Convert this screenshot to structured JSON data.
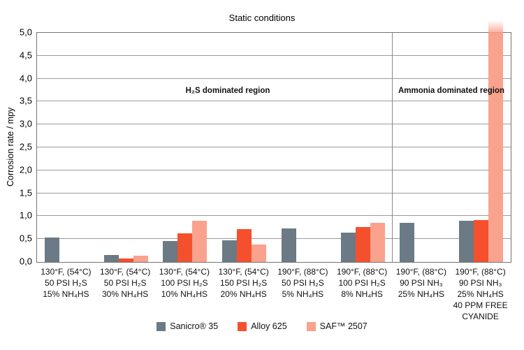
{
  "chart_data": {
    "type": "bar",
    "title": "Static conditions",
    "xlabel": "",
    "ylabel": "Corrosion rate / mpy",
    "ylim": [
      0,
      5
    ],
    "ytick_step": 0.5,
    "ytick_labels": [
      "0,0",
      "0,5",
      "1,0",
      "1,5",
      "2,0",
      "2,5",
      "3,0",
      "3,5",
      "4,0",
      "4,5",
      "5,0"
    ],
    "decimal_style": "comma",
    "grid": true,
    "legend_position": "bottom",
    "categories": [
      [
        "130°F, (54°C)",
        "50 PSI H₂S",
        "15% NH₄HS"
      ],
      [
        "130°F, (54°C)",
        "50 PSI H₂S",
        "30% NH₄HS"
      ],
      [
        "130°F, (54°C)",
        "100 PSI H₂S",
        "10% NH₄HS"
      ],
      [
        "130°F, (54°C)",
        "150 PSI H₂S",
        "20% NH₄HS"
      ],
      [
        "190°F, (88°C)",
        "50 PSI H₂S",
        "5% NH₄HS"
      ],
      [
        "190°F, (88°C)",
        "100 PSI H₂S",
        "8% NH₄HS"
      ],
      [
        "190°F, (88°C)",
        "90 PSI NH₃",
        "25% NH₄HS"
      ],
      [
        "190°F, (88°C)",
        "90 PSI NH₃",
        "25% NH₄HS",
        "40 PPM FREE",
        "CYANIDE"
      ]
    ],
    "series": [
      {
        "name": "Sanicro® 35",
        "color": "#6b7a84",
        "values": [
          0.53,
          0.15,
          0.45,
          0.48,
          0.73,
          0.64,
          0.85,
          0.9
        ]
      },
      {
        "name": "Alloy 625",
        "color": "#f4502d",
        "values": [
          0,
          0.08,
          0.63,
          0.72,
          0,
          0.76,
          0,
          0.92
        ]
      },
      {
        "name": "SAF™ 2507",
        "color": "#f9a28d",
        "values": [
          0,
          0.13,
          0.9,
          0.38,
          0,
          0.86,
          0,
          5.3
        ]
      }
    ],
    "offscale_bars": [
      {
        "series": "SAF™ 2507",
        "category_index": 7,
        "note": "bar exceeds 5,0 axis maximum and is clipped at the top of the plot"
      }
    ],
    "regions": [
      {
        "label": "H₂S dominated region"
      },
      {
        "label": "Ammonia dominated region"
      }
    ],
    "region_divider_after_category": 6
  },
  "colors": {
    "frame": "#737373",
    "gridline": "#9b9b9b",
    "divider": "#8a8a8a",
    "background": "#ffffff",
    "text": "#111111"
  }
}
